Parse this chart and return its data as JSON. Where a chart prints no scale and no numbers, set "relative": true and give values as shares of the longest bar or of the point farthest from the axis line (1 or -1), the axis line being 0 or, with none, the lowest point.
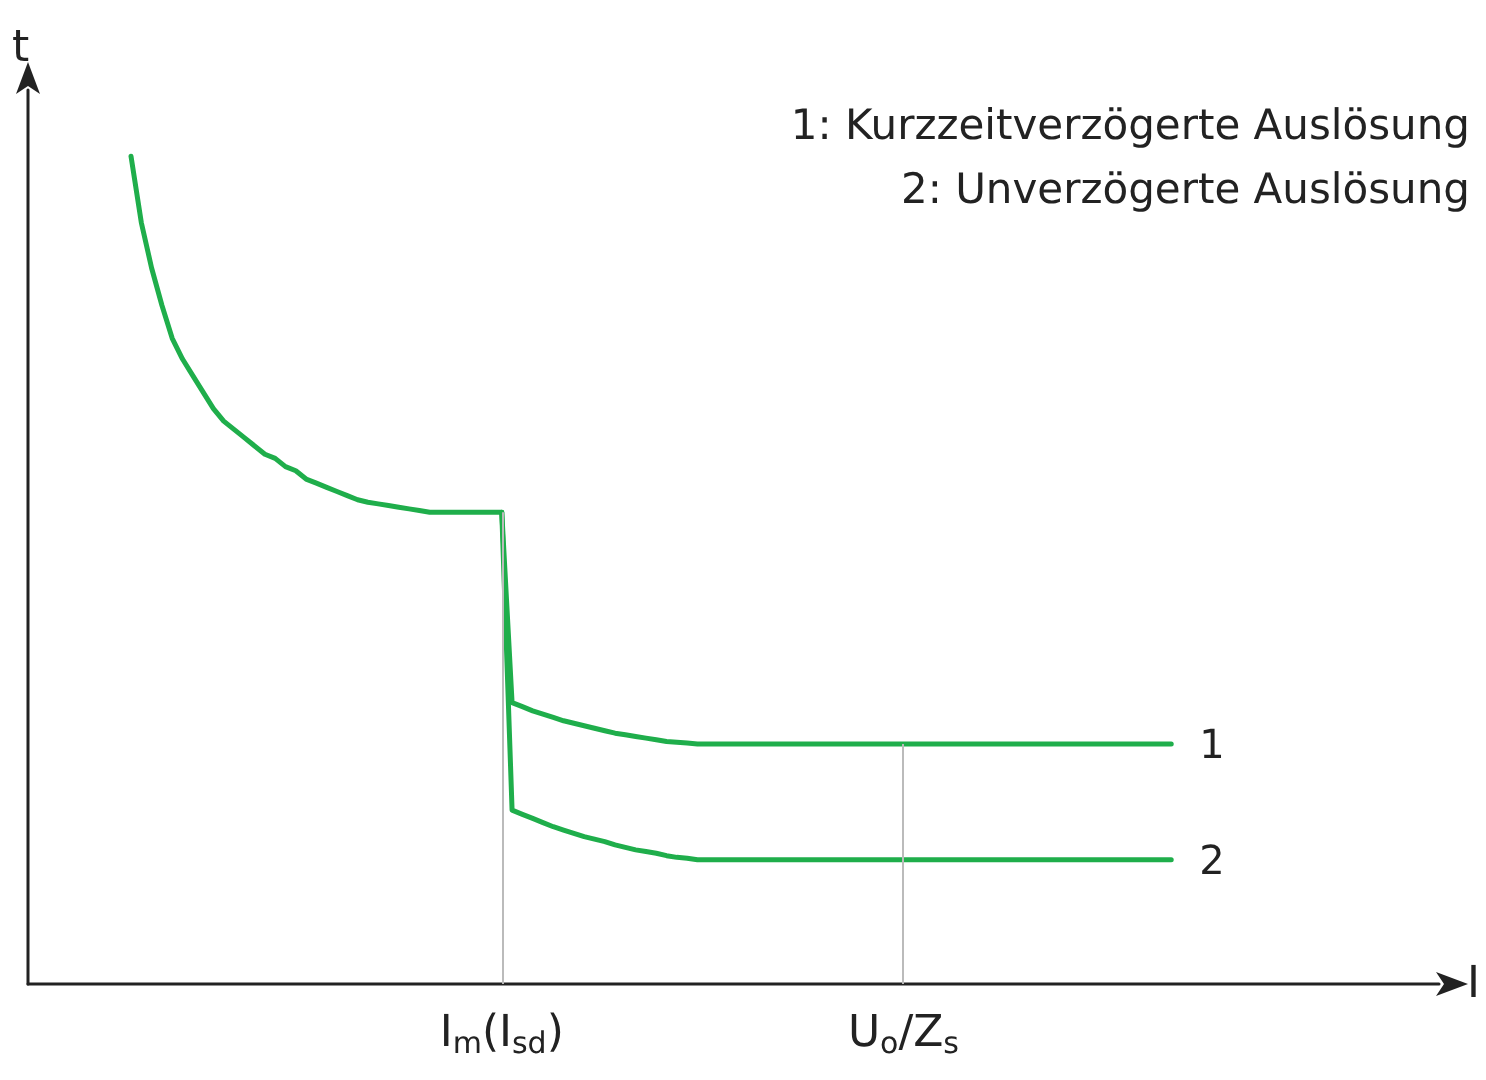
{
  "chart_data": {
    "type": "line",
    "relative": true,
    "xlabel": "I",
    "ylabel": "t",
    "annotations": [
      "1: Kurzzeitverzögerte Auslösung",
      "2: Unverzögerte Auslösung"
    ],
    "categories": [
      null,
      null,
      null,
      null,
      null,
      null,
      null,
      null,
      null,
      null,
      null,
      null,
      null,
      null,
      null,
      null,
      null,
      null,
      null,
      null,
      null,
      null,
      null,
      null,
      null,
      null,
      null,
      null,
      null,
      null,
      null,
      null,
      null,
      null,
      null,
      null,
      null,
      null,
      null,
      null,
      null,
      null,
      null,
      null,
      null,
      null,
      "I$_{m}$(I$_{sd}$)",
      null,
      null,
      null,
      null,
      null,
      null,
      null,
      null,
      null,
      null,
      null,
      null,
      null,
      null,
      null,
      null,
      null,
      null,
      null,
      null,
      null,
      null,
      null,
      null,
      null,
      null,
      null,
      null,
      null,
      null,
      null,
      null,
      null,
      null,
      null,
      null,
      null,
      null,
      "U$_{o}$/Z$_{s}$",
      null,
      null,
      null,
      null,
      null,
      null,
      null,
      null,
      null,
      null,
      null,
      null,
      null,
      null,
      null,
      null,
      null,
      null,
      null,
      null,
      null,
      null,
      null,
      null,
      null,
      null,
      null,
      null,
      null,
      null,
      null,
      null,
      null,
      null,
      null,
      null,
      null,
      null,
      null,
      null,
      null,
      null,
      null,
      null,
      null,
      null,
      null,
      null,
      null,
      null,
      null,
      null
    ],
    "series": [
      {
        "name": "1",
        "color": "#1fae4b",
        "values": [
          null,
          null,
          null,
          null,
          null,
          null,
          null,
          null,
          null,
          null,
          1.0,
          0.92,
          0.865,
          0.82,
          0.78,
          0.755,
          0.735,
          0.715,
          0.695,
          0.68,
          0.67,
          0.66,
          0.65,
          0.64,
          0.635,
          0.625,
          0.62,
          0.61,
          0.605,
          0.6,
          0.595,
          0.59,
          0.585,
          0.582,
          0.58,
          0.578,
          0.576,
          0.574,
          0.572,
          0.57,
          0.57,
          0.57,
          0.57,
          0.57,
          0.57,
          0.57,
          0.57,
          0.34,
          0.335,
          0.33,
          0.326,
          0.322,
          0.318,
          0.315,
          0.312,
          0.309,
          0.306,
          0.303,
          0.301,
          0.299,
          0.297,
          0.295,
          0.293,
          0.292,
          0.291,
          0.29,
          0.29,
          0.29,
          0.29,
          0.29,
          0.29,
          0.29,
          0.29,
          0.29,
          0.29,
          0.29,
          0.29,
          0.29,
          0.29,
          0.29,
          0.29,
          0.29,
          0.29,
          0.29,
          0.29,
          0.29,
          0.29,
          0.29,
          0.29,
          0.29,
          0.29,
          0.29,
          0.29,
          0.29,
          0.29,
          0.29,
          0.29,
          0.29,
          0.29,
          0.29,
          0.29,
          0.29,
          0.29,
          0.29,
          0.29,
          0.29,
          0.29,
          0.29,
          0.29,
          0.29,
          0.29,
          0.29,
          null,
          null,
          null,
          null,
          null,
          null,
          null,
          null,
          null,
          null,
          null,
          null,
          null,
          null,
          null,
          null,
          null,
          null,
          null,
          null,
          null,
          null,
          null,
          null,
          null,
          null
        ]
      },
      {
        "name": "2",
        "color": "#1fae4b",
        "values": [
          null,
          null,
          null,
          null,
          null,
          null,
          null,
          null,
          null,
          null,
          null,
          null,
          null,
          null,
          null,
          null,
          null,
          null,
          null,
          null,
          null,
          null,
          null,
          null,
          null,
          null,
          null,
          null,
          null,
          null,
          null,
          null,
          null,
          null,
          null,
          null,
          null,
          null,
          null,
          null,
          null,
          null,
          null,
          null,
          null,
          null,
          0.57,
          0.21,
          0.205,
          0.2,
          0.195,
          0.19,
          0.186,
          0.182,
          0.178,
          0.175,
          0.172,
          0.168,
          0.165,
          0.162,
          0.16,
          0.158,
          0.155,
          0.153,
          0.152,
          0.15,
          0.15,
          0.15,
          0.15,
          0.15,
          0.15,
          0.15,
          0.15,
          0.15,
          0.15,
          0.15,
          0.15,
          0.15,
          0.15,
          0.15,
          0.15,
          0.15,
          0.15,
          0.15,
          0.15,
          0.15,
          0.15,
          0.15,
          0.15,
          0.15,
          0.15,
          0.15,
          0.15,
          0.15,
          0.15,
          0.15,
          0.15,
          0.15,
          0.15,
          0.15,
          0.15,
          0.15,
          0.15,
          0.15,
          0.15,
          0.15,
          0.15,
          0.15,
          0.15,
          0.15,
          0.15,
          0.15,
          null,
          null,
          null,
          null,
          null,
          null,
          null,
          null,
          null,
          null,
          null,
          null,
          null,
          null,
          null,
          null,
          null,
          null,
          null,
          null,
          null,
          null,
          null,
          null,
          null,
          null
        ]
      }
    ],
    "ref_lines": [
      {
        "axis": "x",
        "value": "I$_{m}$(I$_{sd}$)",
        "label": null,
        "color": "#bbbbbb"
      },
      {
        "axis": "x",
        "value": "U$_{o}$/Z$_{s}$",
        "label": null,
        "color": "#bbbbbb"
      }
    ],
    "legend": false,
    "grid": false,
    "marker": "none",
    "line_style": "solid"
  }
}
